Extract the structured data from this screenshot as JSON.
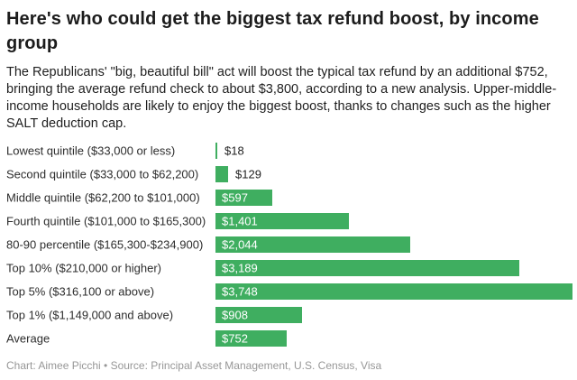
{
  "header": {
    "title": "Here's who could get the biggest tax refund boost, by income group",
    "subtitle": "The Republicans' \"big, beautiful bill\" act will boost the typical tax refund by an additional $752, bringing the average refund check to about $3,800, according to a new analysis. Upper-middle-income households are likely to enjoy the biggest boost, thanks to changes such as the higher SALT deduction cap."
  },
  "chart_data": {
    "type": "bar",
    "orientation": "horizontal",
    "categories": [
      "Lowest quintile ($33,000 or less)",
      "Second quintile ($33,000 to $62,200)",
      "Middle quintile ($62,200 to $101,000)",
      "Fourth quintile ($101,000 to $165,300)",
      "80-90 percentile ($165,300-$234,900)",
      "Top 10% ($210,000 or higher)",
      "Top 5% ($316,100 or above)",
      "Top 1% ($1,149,000 and above)",
      "Average"
    ],
    "values": [
      18,
      129,
      597,
      1401,
      2044,
      3189,
      3748,
      908,
      752
    ],
    "value_labels": [
      "$18",
      "$129",
      "$597",
      "$1,401",
      "$2,044",
      "$3,189",
      "$3,748",
      "$908",
      "$752"
    ],
    "xlim": [
      0,
      3748
    ],
    "bar_color": "#3fae60",
    "grid": false,
    "legend": "none",
    "value_label_placement": "inside bar (white) when bar is wide enough, otherwise right of bar (dark)"
  },
  "footer": {
    "text": "Chart: Aimee Picchi • Source: Principal Asset Management, U.S. Census, Visa"
  }
}
